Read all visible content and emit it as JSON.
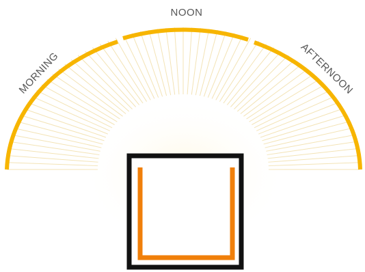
{
  "labels": {
    "morning": "MORNING",
    "noon": "NOON",
    "afternoon": "AFTERNOON"
  },
  "colors": {
    "sun_arc": "#f7b500",
    "sun_rays": "#f3e3b5",
    "label_text": "#555555",
    "room_outline": "#111111",
    "room_inner_wall": "#f07f0a",
    "background": "#ffffff"
  },
  "icons": {
    "room": "room-plan-icon"
  }
}
